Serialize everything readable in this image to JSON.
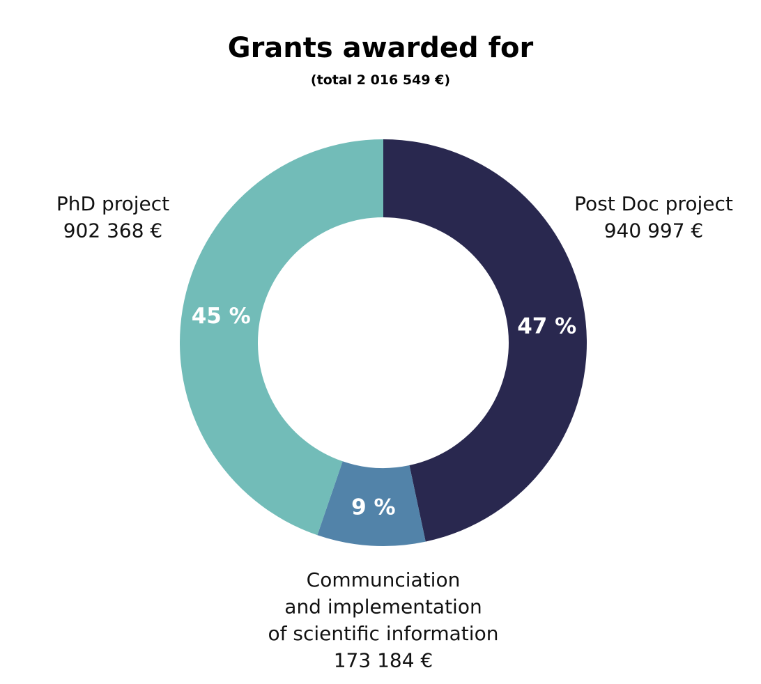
{
  "chart_data": {
    "type": "pie",
    "title": "Grants awarded for",
    "subtitle": "(total 2 016 549 €)",
    "donut": true,
    "slices": [
      {
        "label_lines": [
          "Post Doc project",
          "940 997 €"
        ],
        "value": 940997,
        "percent_label": "47 %",
        "color": "#29284f"
      },
      {
        "label_lines": [
          "Communciation",
          "and implementation",
          "of scientific information",
          "173 184 €"
        ],
        "value": 173184,
        "percent_label": "9 %",
        "color": "#5283a9"
      },
      {
        "label_lines": [
          "PhD project",
          "902 368 €"
        ],
        "value": 902368,
        "percent_label": "45 %",
        "color": "#72bcb8"
      }
    ]
  }
}
